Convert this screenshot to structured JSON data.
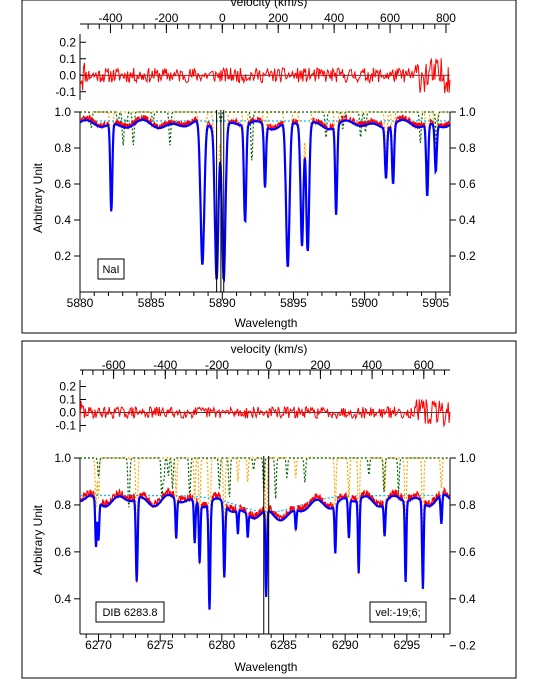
{
  "colors": {
    "observed": "#ff0000",
    "model": "#0000ff",
    "telluric": "#ffa500",
    "stellar": "#006400",
    "continuum": "#00bfff",
    "marker": "#000000"
  },
  "chart_data": [
    {
      "type": "line",
      "title": "",
      "top_axis_label": "velocity (km/s)",
      "xlabel": "Wavelength",
      "ylabel": "Arbitrary Unit",
      "xlim": [
        5880,
        5906
      ],
      "x_ticks": [
        5880,
        5885,
        5890,
        5895,
        5900,
        5905
      ],
      "ylim": [
        0,
        1.0
      ],
      "y_ticks": [
        0.2,
        0.4,
        0.6,
        0.8,
        1.0
      ],
      "y_ticks_right": [
        0.2,
        0.4,
        0.6,
        0.8,
        1.0
      ],
      "velocity_ticks": [
        -400,
        -200,
        0,
        200,
        400,
        600,
        800
      ],
      "velocity_zero_wavelength": 5890,
      "residual_ylim": [
        -0.15,
        0.25
      ],
      "residual_ticks": [
        0.2,
        0.1,
        0.0,
        -0.1
      ],
      "annotation_left": "NaI",
      "annotation_right": "",
      "continuum_level": 0.93,
      "vertical_markers": [
        5889.6,
        5889.9,
        5890.1
      ],
      "absorption_lines": [
        {
          "x": 5882.2,
          "depth": 0.52,
          "width": 0.07
        },
        {
          "x": 5888.6,
          "depth": 0.86,
          "width": 0.13
        },
        {
          "x": 5889.6,
          "depth": 0.9,
          "width": 0.12
        },
        {
          "x": 5890.1,
          "depth": 0.92,
          "width": 0.12
        },
        {
          "x": 5891.6,
          "depth": 0.58,
          "width": 0.08
        },
        {
          "x": 5893.0,
          "depth": 0.37,
          "width": 0.07
        },
        {
          "x": 5894.6,
          "depth": 0.87,
          "width": 0.12
        },
        {
          "x": 5895.6,
          "depth": 0.72,
          "width": 0.1
        },
        {
          "x": 5896.0,
          "depth": 0.76,
          "width": 0.1
        },
        {
          "x": 5898.0,
          "depth": 0.53,
          "width": 0.07
        },
        {
          "x": 5901.5,
          "depth": 0.3,
          "width": 0.07
        },
        {
          "x": 5902.0,
          "depth": 0.35,
          "width": 0.07
        },
        {
          "x": 5904.4,
          "depth": 0.43,
          "width": 0.07
        },
        {
          "x": 5905.0,
          "depth": 0.28,
          "width": 0.07
        }
      ],
      "broad_features": []
    },
    {
      "type": "line",
      "title": "",
      "top_axis_label": "velocity (km/s)",
      "xlabel": "Wavelength",
      "ylabel": "Arbitrary Unit",
      "xlim": [
        6268.5,
        6298.5
      ],
      "x_ticks": [
        6270,
        6275,
        6280,
        6285,
        6290,
        6295
      ],
      "ylim": [
        0.25,
        1.0
      ],
      "y_ticks": [
        0.4,
        0.6,
        0.8,
        1.0
      ],
      "y_ticks_right": [
        0.2,
        0.4,
        0.6,
        0.8,
        1.0
      ],
      "velocity_ticks": [
        -600,
        -400,
        -200,
        0,
        200,
        400,
        600
      ],
      "velocity_zero_wavelength": 6283.8,
      "residual_ylim": [
        -0.15,
        0.25
      ],
      "residual_ticks": [
        0.2,
        0.1,
        0.0,
        -0.1
      ],
      "annotation_left": "DIB 6283.8",
      "annotation_right": "vel:-19;6;",
      "continuum_level": 0.82,
      "vertical_markers": [
        6283.4,
        6283.8
      ],
      "absorption_lines": [
        {
          "x": 6269.8,
          "depth": 0.25,
          "width": 0.06
        },
        {
          "x": 6270.0,
          "depth": 0.2,
          "width": 0.06
        },
        {
          "x": 6273.1,
          "depth": 0.43,
          "width": 0.07
        },
        {
          "x": 6276.3,
          "depth": 0.2,
          "width": 0.06
        },
        {
          "x": 6277.8,
          "depth": 0.22,
          "width": 0.06
        },
        {
          "x": 6278.2,
          "depth": 0.3,
          "width": 0.06
        },
        {
          "x": 6279.0,
          "depth": 0.55,
          "width": 0.07
        },
        {
          "x": 6280.2,
          "depth": 0.38,
          "width": 0.07
        },
        {
          "x": 6281.3,
          "depth": 0.12,
          "width": 0.05
        },
        {
          "x": 6282.1,
          "depth": 0.12,
          "width": 0.05
        },
        {
          "x": 6283.6,
          "depth": 0.45,
          "width": 0.06
        },
        {
          "x": 6286.0,
          "depth": 0.1,
          "width": 0.05
        },
        {
          "x": 6289.2,
          "depth": 0.25,
          "width": 0.06
        },
        {
          "x": 6290.3,
          "depth": 0.2,
          "width": 0.06
        },
        {
          "x": 6291.1,
          "depth": 0.38,
          "width": 0.06
        },
        {
          "x": 6293.2,
          "depth": 0.17,
          "width": 0.06
        },
        {
          "x": 6294.9,
          "depth": 0.42,
          "width": 0.06
        },
        {
          "x": 6296.3,
          "depth": 0.45,
          "width": 0.06
        },
        {
          "x": 6297.8,
          "depth": 0.15,
          "width": 0.06
        }
      ],
      "broad_features": [
        {
          "x": 6283.8,
          "depth": 0.07,
          "width": 2.5
        }
      ]
    }
  ]
}
